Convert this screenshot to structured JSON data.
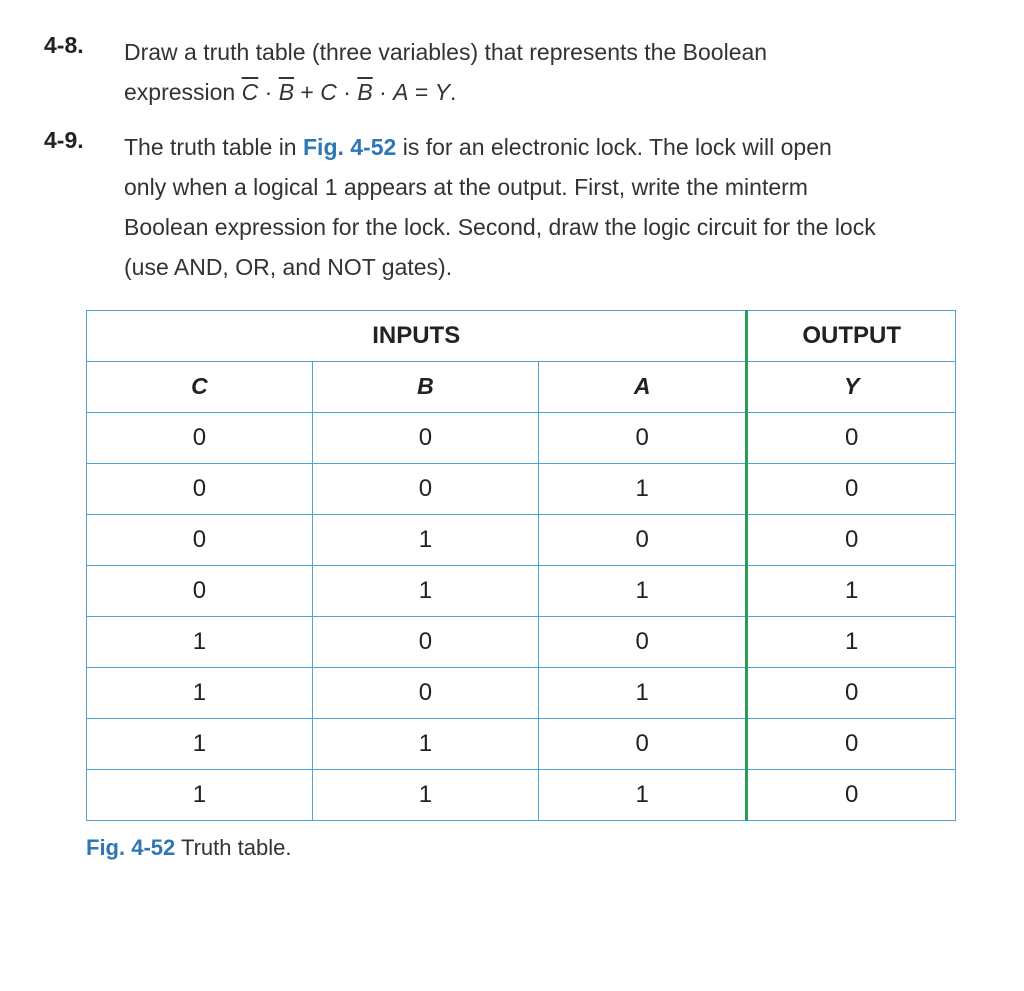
{
  "problems": {
    "p48": {
      "num": "4-8.",
      "line1": "Draw a truth table (three variables) that represents the Boolean",
      "line2a": "expression ",
      "expr_cbar": "C",
      "expr_dot1": " · ",
      "expr_bbar1": "B",
      "expr_plus": " + ",
      "expr_c": "C",
      "expr_dot2": " · ",
      "expr_bbar2": "B",
      "expr_dot3": " · ",
      "expr_a": "A",
      "expr_eq": " = ",
      "expr_y": "Y",
      "expr_period": "."
    },
    "p49": {
      "num": "4-9.",
      "line1a": "The truth table in ",
      "figref": "Fig. 4-52",
      "line1b": " is for an electronic lock. The lock will open",
      "line2": "only when a logical 1 appears at the output. First, write the minterm",
      "line3": "Boolean expression for the lock. Second, draw the logic circuit for the lock",
      "line4": "(use AND, OR, and NOT gates)."
    }
  },
  "table": {
    "type": "table",
    "header_inputs": "INPUTS",
    "header_output": "OUTPUT",
    "col_C": "C",
    "col_B": "B",
    "col_A": "A",
    "col_Y": "Y",
    "rows": [
      {
        "C": "0",
        "B": "0",
        "A": "0",
        "Y": "0"
      },
      {
        "C": "0",
        "B": "0",
        "A": "1",
        "Y": "0"
      },
      {
        "C": "0",
        "B": "1",
        "A": "0",
        "Y": "0"
      },
      {
        "C": "0",
        "B": "1",
        "A": "1",
        "Y": "1"
      },
      {
        "C": "1",
        "B": "0",
        "A": "0",
        "Y": "1"
      },
      {
        "C": "1",
        "B": "0",
        "A": "1",
        "Y": "0"
      },
      {
        "C": "1",
        "B": "1",
        "A": "0",
        "Y": "0"
      },
      {
        "C": "1",
        "B": "1",
        "A": "1",
        "Y": "0"
      }
    ],
    "border_color": "#4ea3d9",
    "divider_color": "#2e9a5a",
    "text_color": "#222222",
    "header_fontsize": 24,
    "cell_fontsize": 24
  },
  "caption": {
    "fig": "Fig. 4-52",
    "text": "  Truth table."
  },
  "colors": {
    "link": "#2e76b6",
    "body_text": "#333333",
    "background": "#ffffff"
  }
}
